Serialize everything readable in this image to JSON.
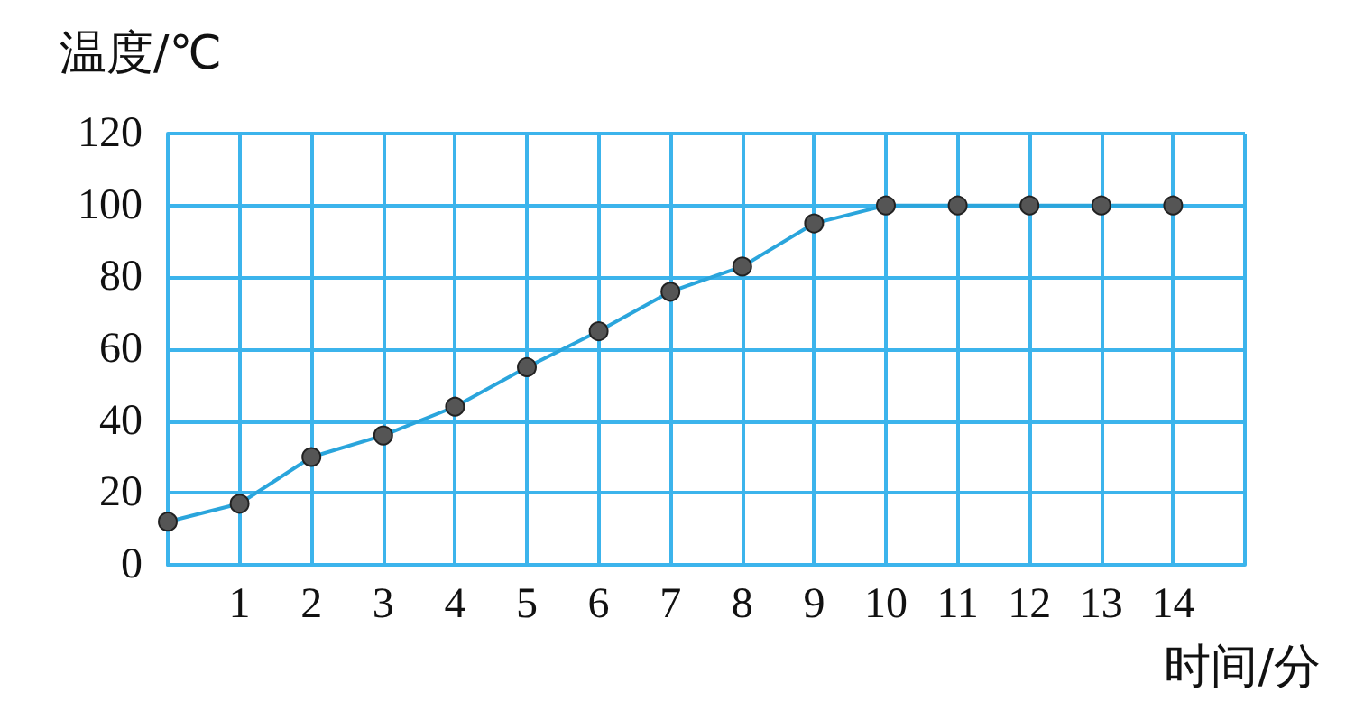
{
  "chart_data": {
    "type": "line",
    "ylabel": "温度/℃",
    "xlabel": "时间/分",
    "x": [
      0,
      1,
      2,
      3,
      4,
      5,
      6,
      7,
      8,
      9,
      10,
      11,
      12,
      13,
      14
    ],
    "series": [
      {
        "color": "#2aa5dc",
        "values": [
          12,
          17,
          30,
          36,
          44,
          55,
          65,
          76,
          83,
          95,
          100,
          100,
          100,
          100,
          100
        ]
      }
    ],
    "xlim": [
      0,
      15
    ],
    "xticks": [
      {
        "value": 0,
        "label": null
      },
      1,
      2,
      3,
      4,
      5,
      6,
      7,
      8,
      9,
      10,
      11,
      12,
      13,
      14,
      {
        "value": 15,
        "label": null
      }
    ],
    "ylim": [
      0,
      120
    ],
    "yticks": [
      0,
      20,
      40,
      60,
      80,
      100,
      120
    ],
    "grid": true,
    "marker": "circle",
    "line_style": "solid"
  }
}
